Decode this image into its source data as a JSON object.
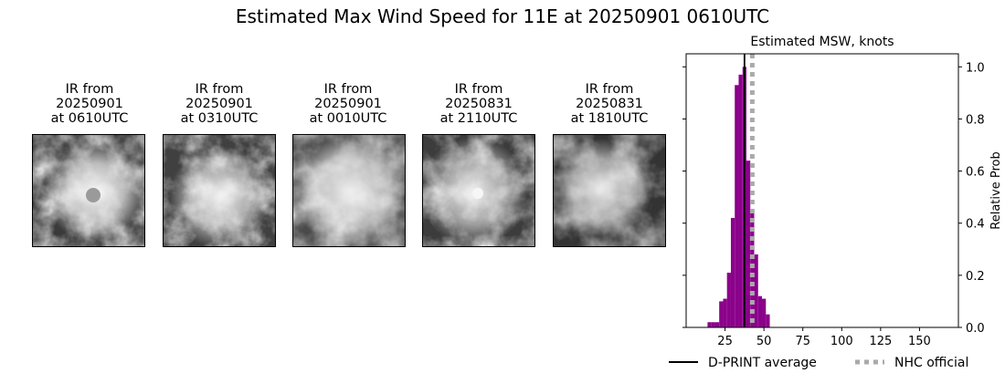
{
  "figure": {
    "title": "Estimated Max Wind Speed for 11E at 20250901 0610UTC"
  },
  "panels": [
    {
      "line1": "IR from",
      "line2": "20250901",
      "line3": "at 0610UTC"
    },
    {
      "line1": "IR from",
      "line2": "20250901",
      "line3": "at 0310UTC"
    },
    {
      "line1": "IR from",
      "line2": "20250901",
      "line3": "at 0010UTC"
    },
    {
      "line1": "IR from",
      "line2": "20250831",
      "line3": "at 2110UTC"
    },
    {
      "line1": "IR from",
      "line2": "20250831",
      "line3": "at 1810UTC"
    }
  ],
  "chart_data": {
    "type": "bar",
    "title": "Estimated MSW, knots",
    "xlabel": "",
    "ylabel": "Relative Prob",
    "xlim": [
      0,
      175
    ],
    "ylim": [
      0,
      1.05
    ],
    "xticks": [
      25,
      50,
      75,
      100,
      125,
      150
    ],
    "yticks": [
      0.0,
      0.2,
      0.4,
      0.6,
      0.8,
      1.0
    ],
    "y_axis_side": "right",
    "bin_width": 2.5,
    "bins": [
      {
        "x": 15,
        "y": 0.02
      },
      {
        "x": 17.5,
        "y": 0.02
      },
      {
        "x": 20,
        "y": 0.02
      },
      {
        "x": 22.5,
        "y": 0.1
      },
      {
        "x": 25,
        "y": 0.11
      },
      {
        "x": 27.5,
        "y": 0.21
      },
      {
        "x": 30,
        "y": 0.42
      },
      {
        "x": 32.5,
        "y": 0.93
      },
      {
        "x": 35,
        "y": 0.97
      },
      {
        "x": 37.5,
        "y": 1.0
      },
      {
        "x": 40,
        "y": 0.64
      },
      {
        "x": 42.5,
        "y": 0.44
      },
      {
        "x": 45,
        "y": 0.28
      },
      {
        "x": 47.5,
        "y": 0.12
      },
      {
        "x": 50,
        "y": 0.11
      },
      {
        "x": 52.5,
        "y": 0.05
      }
    ],
    "bar_color": "#8b008b",
    "dprint_average": 37.5,
    "nhc_official": 42.5,
    "legend": {
      "placement": "bottom",
      "dprint_label": "D-PRINT average",
      "nhc_label": "NHC official",
      "dprint_color": "#000000",
      "nhc_color": "#aaaaaa"
    }
  }
}
